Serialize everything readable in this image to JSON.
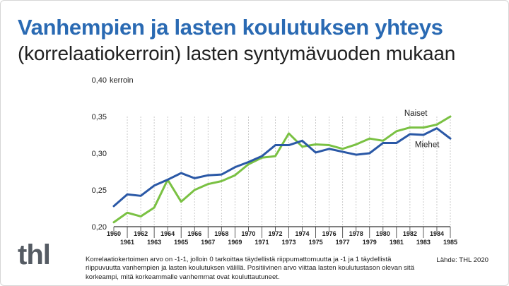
{
  "title": "Vanhempien ja lasten koulutuksen yhteys",
  "subtitle": "(korrelaatiokerroin) lasten syntymävuoden mukaan",
  "note": "Korrelaatiokertoimen arvo on -1-1, jolloin 0 tarkoittaa täydellistä riippumattomuutta ja -1 ja 1 täydellistä riippuvuutta vanhempien ja lasten koulutuksen välillä. Positiivinen arvo viittaa lasten koulutustason olevan sitä korkeampi, mitä korkeammalle vanhemmat ovat kouluttautuneet.",
  "source": "Lähde: THL 2020",
  "logo": "thl",
  "colors": {
    "title": "#2a6ab3",
    "naiset": "#7ac143",
    "miehet": "#2a58a6",
    "grid": "#bdbdbd",
    "axis": "#333333"
  },
  "chart_data": {
    "type": "line",
    "ylabel": "kerroin",
    "ylim": [
      0.2,
      0.4
    ],
    "yticks": [
      "0,20",
      "0,25",
      "0,30",
      "0,35",
      "0,40"
    ],
    "x": [
      1960,
      1961,
      1962,
      1963,
      1964,
      1965,
      1966,
      1967,
      1968,
      1969,
      1970,
      1971,
      1972,
      1973,
      1974,
      1975,
      1976,
      1977,
      1978,
      1979,
      1980,
      1981,
      1982,
      1983,
      1984,
      1985
    ],
    "xticks_top": [
      "1960",
      "1962",
      "1964",
      "1966",
      "1968",
      "1970",
      "1972",
      "1974",
      "1976",
      "1978",
      "1980",
      "1982",
      "1984"
    ],
    "xticks_bottom": [
      "1961",
      "1963",
      "1965",
      "1967",
      "1969",
      "1971",
      "1973",
      "1975",
      "1977",
      "1979",
      "1981",
      "1983",
      "1985"
    ],
    "grid": "vertical dashed",
    "series": [
      {
        "name": "Naiset",
        "color": "#7ac143",
        "values": [
          0.206,
          0.219,
          0.214,
          0.226,
          0.264,
          0.234,
          0.25,
          0.258,
          0.262,
          0.27,
          0.285,
          0.294,
          0.296,
          0.327,
          0.309,
          0.312,
          0.311,
          0.306,
          0.312,
          0.32,
          0.317,
          0.33,
          0.335,
          0.335,
          0.339,
          0.35
        ]
      },
      {
        "name": "Miehet",
        "color": "#2a58a6",
        "values": [
          0.228,
          0.244,
          0.242,
          0.256,
          0.264,
          0.273,
          0.266,
          0.27,
          0.271,
          0.281,
          0.288,
          0.296,
          0.311,
          0.311,
          0.317,
          0.301,
          0.306,
          0.302,
          0.298,
          0.3,
          0.314,
          0.314,
          0.326,
          0.325,
          0.334,
          0.32
        ]
      }
    ]
  }
}
